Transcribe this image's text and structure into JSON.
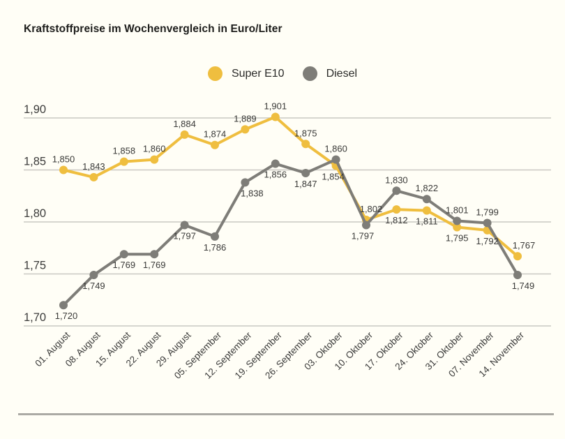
{
  "header": {
    "title": "Kraftstoffpreise im Wochenvergleich in Euro/Liter"
  },
  "chart_data": {
    "type": "line",
    "title": "Kraftstoffpreise im Wochenvergleich in Euro/Liter",
    "unit": "Euro/Liter",
    "grid": true,
    "legend_position": "top-center",
    "ylim": [
      1.7,
      1.9
    ],
    "background_color": "#fffef6",
    "gridline_color": "#c9c8c2",
    "label_color": "#3a3a38",
    "categories": [
      "01. August",
      "08. August",
      "15. August",
      "22. August",
      "29. August",
      "05. September",
      "12. September",
      "19. September",
      "26. September",
      "03. Oktober",
      "10. Oktober",
      "17. Oktober",
      "24. Oktober",
      "31. Oktober",
      "07. November",
      "14. November"
    ],
    "y_ticks": [
      {
        "value": 1.9,
        "label": "1,90"
      },
      {
        "value": 1.85,
        "label": "1,85"
      },
      {
        "value": 1.8,
        "label": "1,80"
      },
      {
        "value": 1.75,
        "label": "1,75"
      },
      {
        "value": 1.7,
        "label": "1,70"
      }
    ],
    "series": [
      {
        "name": "Super E10",
        "color": "#efbe3f",
        "values": [
          1.85,
          1.843,
          1.858,
          1.86,
          1.884,
          1.874,
          1.889,
          1.901,
          1.875,
          1.854,
          1.802,
          1.812,
          1.811,
          1.795,
          1.792,
          1.767
        ],
        "labels": [
          "1,850",
          "1,843",
          "1,858",
          "1,860",
          "1,884",
          "1,874",
          "1,889",
          "1,901",
          "1,875",
          "1,854",
          "1,802",
          "1,812",
          "1,811",
          "1,795",
          "1,792",
          "1,767"
        ],
        "label_positions": [
          "above",
          "above",
          "above",
          "above",
          "above",
          "above",
          "above",
          "above",
          "above",
          "below",
          "above",
          "below",
          "below",
          "below",
          "below",
          "above"
        ],
        "label_dx": [
          0,
          0,
          0,
          0,
          0,
          0,
          0,
          0,
          0,
          -4,
          7,
          0,
          0,
          0,
          0,
          9
        ]
      },
      {
        "name": "Diesel",
        "color": "#7e7d78",
        "values": [
          1.72,
          1.749,
          1.769,
          1.769,
          1.797,
          1.786,
          1.838,
          1.856,
          1.847,
          1.86,
          1.797,
          1.83,
          1.822,
          1.801,
          1.799,
          1.749
        ],
        "labels": [
          "1,720",
          "1,749",
          "1,769",
          "1,769",
          "1,797",
          "1,786",
          "1,838",
          "1,856",
          "1,847",
          "1,860",
          "1,797",
          "1,830",
          "1,822",
          "1,801",
          "1,799",
          "1,749"
        ],
        "label_positions": [
          "below",
          "below",
          "below",
          "below",
          "below",
          "below",
          "below",
          "below",
          "below",
          "above",
          "below",
          "above",
          "above",
          "above",
          "above",
          "below"
        ],
        "label_dx": [
          4,
          0,
          0,
          0,
          0,
          0,
          10,
          0,
          0,
          0,
          -5,
          0,
          0,
          0,
          0,
          8
        ]
      }
    ]
  }
}
